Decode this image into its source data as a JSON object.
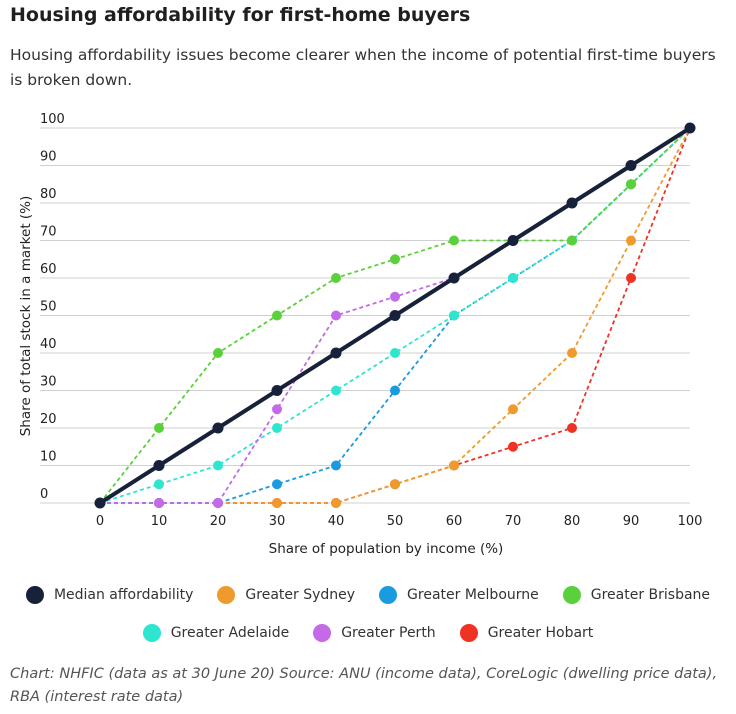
{
  "title": "Housing affordability for first-home buyers",
  "subtitle": "Housing affordability issues become clearer when the income of potential first-time buyers is broken down.",
  "source": "Chart: NHFIC (data as at 30 June 20) Source: ANU (income data), CoreLogic (dwelling price data), RBA (interest rate data)",
  "chart_data": {
    "type": "line",
    "xlabel": "Share of population by income (%)",
    "ylabel": "Share of total stock in a market (%)",
    "x": [
      0,
      10,
      20,
      30,
      40,
      50,
      60,
      70,
      80,
      90,
      100
    ],
    "xlim": [
      0,
      100
    ],
    "ylim": [
      0,
      100
    ],
    "xticks": [
      0,
      10,
      20,
      30,
      40,
      50,
      60,
      70,
      80,
      90,
      100
    ],
    "yticks": [
      0,
      10,
      20,
      30,
      40,
      50,
      60,
      70,
      80,
      90,
      100
    ],
    "grid": "horizontal",
    "legend_position": "bottom",
    "series": [
      {
        "name": "Greater Hobart",
        "color": "#ee3224",
        "dash": true,
        "values": [
          0,
          0,
          0,
          0,
          0,
          5,
          10,
          15,
          20,
          60,
          100
        ]
      },
      {
        "name": "Greater Sydney",
        "color": "#ef9a2d",
        "dash": true,
        "values": [
          0,
          0,
          0,
          0,
          0,
          5,
          10,
          25,
          40,
          70,
          100
        ]
      },
      {
        "name": "Greater Melbourne",
        "color": "#1a9be0",
        "dash": true,
        "values": [
          0,
          0,
          0,
          5,
          10,
          30,
          50,
          60,
          70,
          85,
          100
        ]
      },
      {
        "name": "Greater Adelaide",
        "color": "#2ee5d0",
        "dash": true,
        "values": [
          0,
          5,
          10,
          20,
          30,
          40,
          50,
          60,
          70,
          85,
          100
        ]
      },
      {
        "name": "Greater Brisbane",
        "color": "#5ad13a",
        "dash": true,
        "values": [
          0,
          20,
          40,
          50,
          60,
          65,
          70,
          70,
          70,
          85,
          100
        ]
      },
      {
        "name": "Greater Perth",
        "color": "#c46ae8",
        "dash": true,
        "values": [
          0,
          0,
          0,
          25,
          50,
          55,
          60,
          70,
          80,
          90,
          100
        ]
      },
      {
        "name": "Median affordability",
        "color": "#17213a",
        "dash": false,
        "values": [
          0,
          10,
          20,
          30,
          40,
          50,
          60,
          70,
          80,
          90,
          100
        ]
      }
    ],
    "legend": [
      [
        "Median affordability",
        "Greater Sydney",
        "Greater Melbourne",
        "Greater Brisbane"
      ],
      [
        "Greater Adelaide",
        "Greater Perth",
        "Greater Hobart"
      ]
    ]
  }
}
